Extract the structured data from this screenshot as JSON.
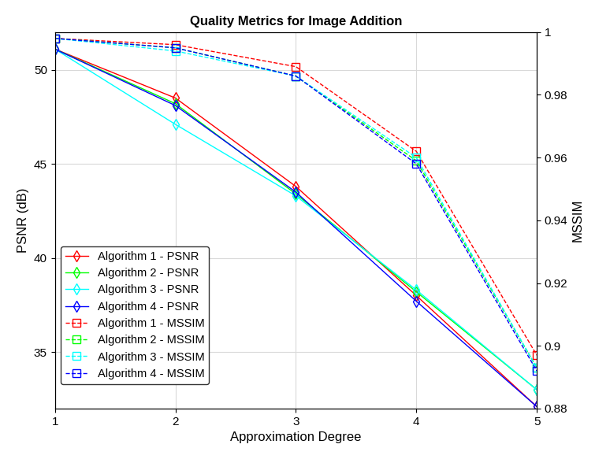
{
  "chart_data": {
    "type": "line",
    "title": "Quality Metrics for Image Addition",
    "x_label": "Approximation Degree",
    "y_label": "PSNR (dB)",
    "y2_label": "MSSIM",
    "x": [
      1,
      2,
      3,
      4,
      5
    ],
    "xlim": [
      1,
      5
    ],
    "xticks": [
      1,
      2,
      3,
      4,
      5
    ],
    "ylim": [
      32,
      52
    ],
    "yticks": [
      35,
      40,
      45,
      50
    ],
    "y2lim": [
      0.88,
      1
    ],
    "y2ticks": [
      0.88,
      0.9,
      0.92,
      0.94,
      0.96,
      0.98,
      1
    ],
    "grid": true,
    "legend": "lower left",
    "series": [
      {
        "name": "Algorithm 1 - PSNR",
        "color": "#ff0000",
        "marker": "diamond",
        "line_style": "solid",
        "values": [
          51.1,
          48.5,
          43.8,
          38.0,
          32.1
        ]
      },
      {
        "name": "Algorithm 2 - PSNR",
        "color": "#00ff00",
        "marker": "diamond",
        "line_style": "solid",
        "values": [
          51.1,
          48.2,
          43.4,
          38.2,
          33.0
        ]
      },
      {
        "name": "Algorithm 3 - PSNR",
        "color": "#00ffff",
        "marker": "diamond",
        "line_style": "solid",
        "values": [
          51.1,
          47.1,
          43.3,
          38.3,
          33.0
        ]
      },
      {
        "name": "Algorithm 4 - PSNR",
        "color": "#0000ff",
        "marker": "diamond",
        "line_style": "solid",
        "values": [
          51.1,
          48.1,
          43.5,
          37.7,
          32.1
        ]
      },
      {
        "name": "Algorithm 1 - MSSIM",
        "color": "#ff0000",
        "marker": "square",
        "line_style": "dashed",
        "axis": "y2",
        "values": [
          0.998,
          0.996,
          0.989,
          0.962,
          0.897
        ]
      },
      {
        "name": "Algorithm 2 - MSSIM",
        "color": "#00ff00",
        "marker": "square",
        "line_style": "dashed",
        "axis": "y2",
        "values": [
          0.998,
          0.995,
          0.986,
          0.959,
          0.893
        ]
      },
      {
        "name": "Algorithm 3 - MSSIM",
        "color": "#00ffff",
        "marker": "square",
        "line_style": "dashed",
        "axis": "y2",
        "values": [
          0.998,
          0.994,
          0.986,
          0.96,
          0.893
        ]
      },
      {
        "name": "Algorithm 4 - MSSIM",
        "color": "#0000ff",
        "marker": "square",
        "line_style": "dashed",
        "axis": "y2",
        "values": [
          0.998,
          0.995,
          0.986,
          0.958,
          0.892
        ]
      }
    ]
  }
}
